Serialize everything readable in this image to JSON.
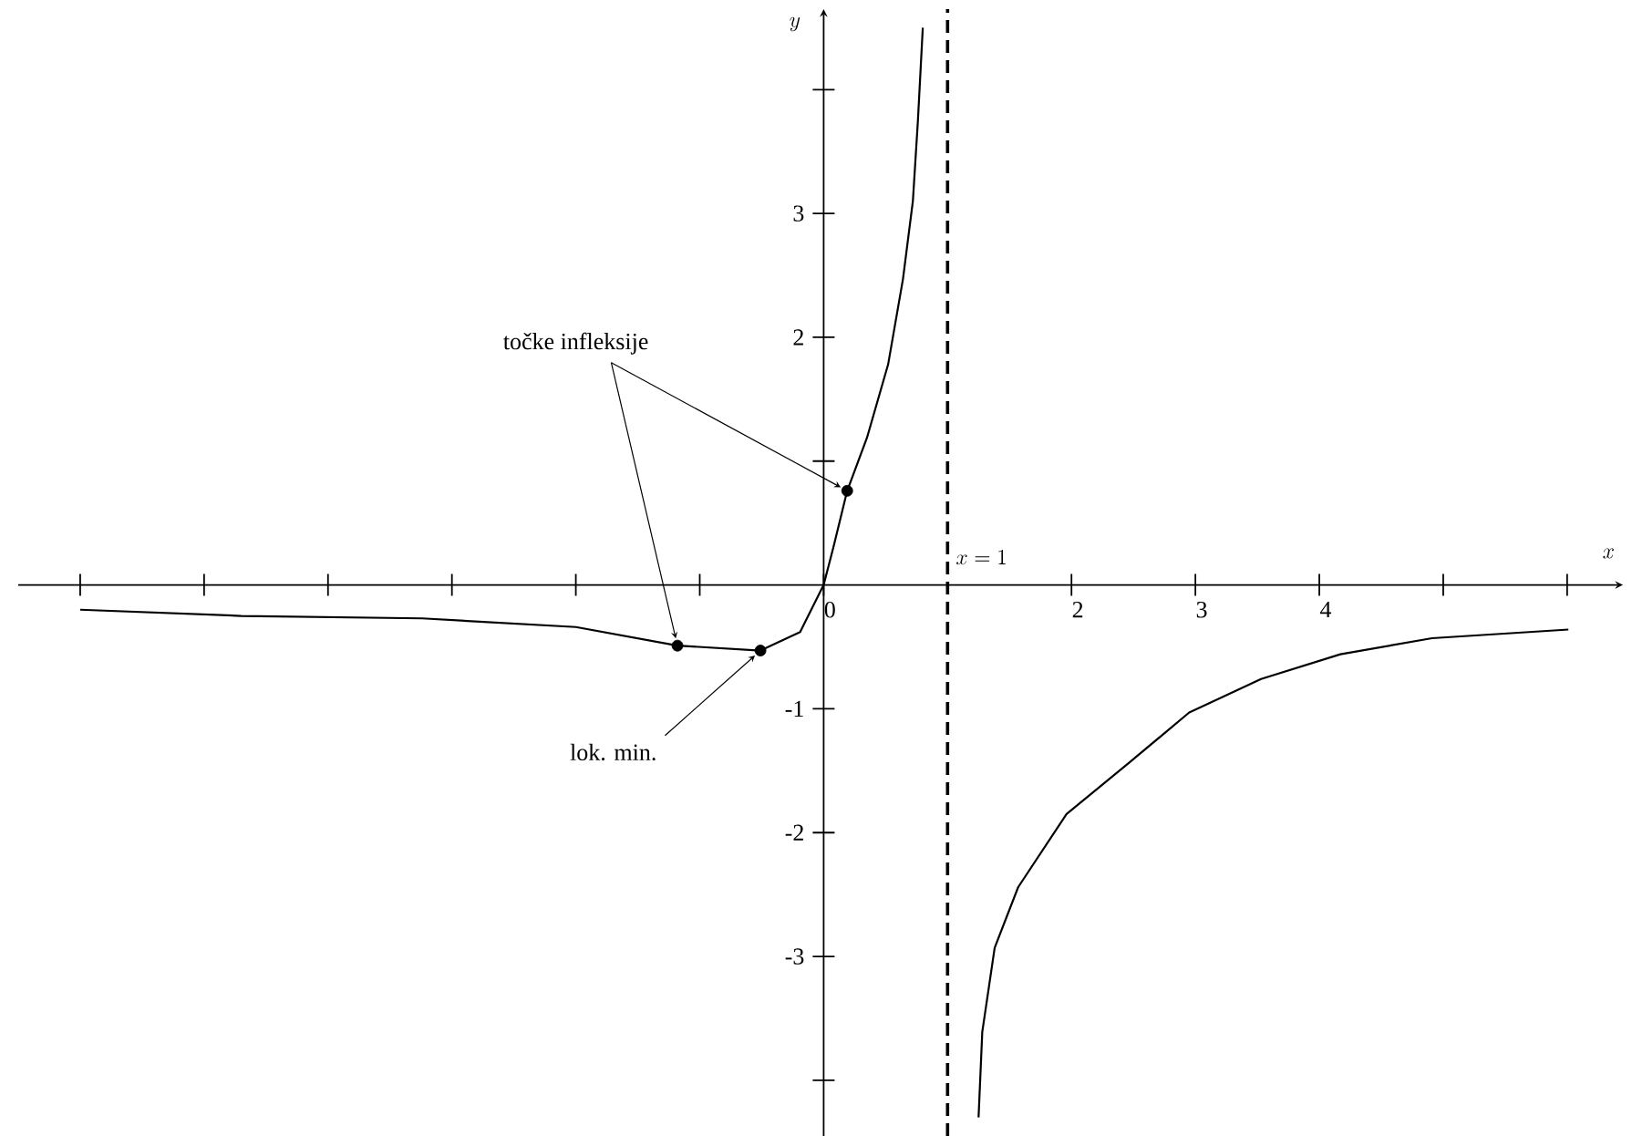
{
  "chart_data": {
    "type": "line",
    "xlabel": "x",
    "ylabel": "y",
    "xlim": [
      -6.5,
      6.45
    ],
    "ylim": [
      -4.45,
      4.65
    ],
    "xticks": [
      {
        "value": -6,
        "label": null
      },
      {
        "value": -5,
        "label": null
      },
      {
        "value": -4,
        "label": null
      },
      {
        "value": -3,
        "label": null
      },
      {
        "value": -2,
        "label": null
      },
      {
        "value": -1,
        "label": null
      },
      0,
      2,
      3,
      4,
      {
        "value": 5,
        "label": null
      },
      {
        "value": 6,
        "label": null
      }
    ],
    "yticks": [
      {
        "value": -4,
        "label": null
      },
      -3,
      -2,
      -1,
      {
        "value": 1,
        "label": null
      },
      2,
      3,
      {
        "value": 4,
        "label": null
      }
    ],
    "grid": false,
    "series": [
      {
        "color": "#000000",
        "marker": "none",
        "x": [
          -6,
          -4.7,
          -3.24,
          -2,
          -1.18,
          -0.51,
          -0.19,
          0,
          0.08,
          0.19,
          0.35,
          0.52,
          0.64,
          0.72,
          0.76,
          0.8,
          1,
          1.25,
          1.28,
          1.38,
          1.57,
          1.96,
          2.46,
          2.95,
          3.53,
          4.17,
          4.91,
          6.01
        ],
        "values": [
          -0.2,
          -0.25,
          -0.27,
          -0.34,
          -0.49,
          -0.53,
          -0.38,
          0,
          0.31,
          0.76,
          1.19,
          1.78,
          2.47,
          3.1,
          3.74,
          4.5,
          null,
          -4.3,
          -3.61,
          -2.93,
          -2.44,
          -1.85,
          -1.44,
          -1.03,
          -0.76,
          -0.56,
          -0.43,
          -0.36
        ]
      },
      {
        "type": "scatter",
        "color": "#000000",
        "marker": "circle",
        "x": [
          -1.18,
          -0.51,
          0.19
        ],
        "values": [
          -0.49,
          -0.53,
          0.76
        ]
      }
    ],
    "ref_lines": [
      {
        "axis": "x",
        "value": 1,
        "label": "x = 1",
        "line_style": "dashed"
      }
    ],
    "annotations": [
      {
        "text": "točke infleksije",
        "x": -1.18,
        "y": -0.49
      },
      {
        "text": "lok. min.",
        "x": -0.51,
        "y": -0.53
      }
    ]
  }
}
